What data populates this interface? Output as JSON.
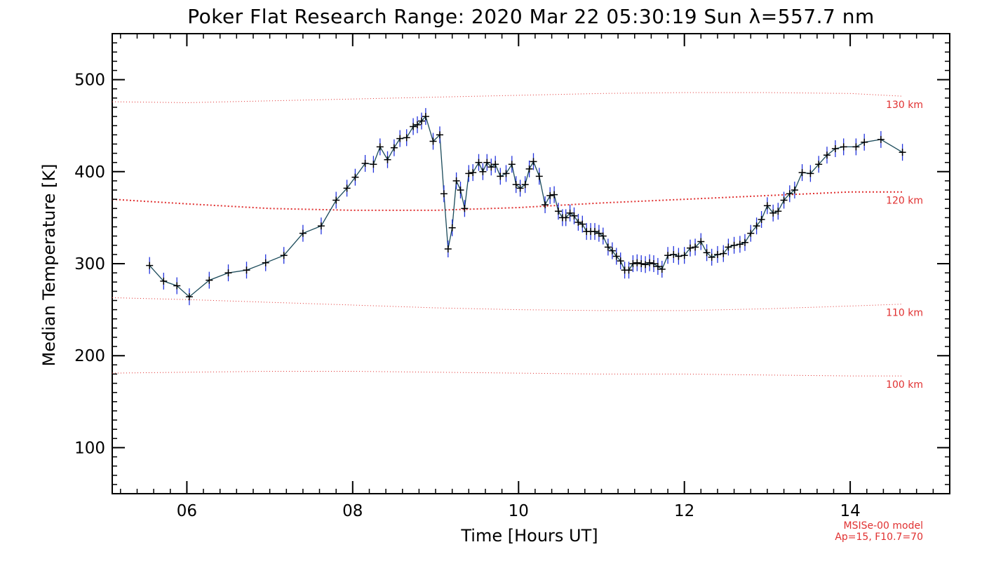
{
  "chart_data": {
    "type": "line",
    "title": "Poker Flat Research Range: 2020 Mar 22 05:30:19 Sun λ=557.7 nm",
    "xlabel": "Time [Hours UT]",
    "ylabel": "Median Temperature [K]",
    "xlim": [
      5.1,
      15.2
    ],
    "ylim": [
      50,
      550
    ],
    "x_ticks": [
      6,
      8,
      10,
      12,
      14
    ],
    "x_tick_labels": [
      "06",
      "08",
      "10",
      "12",
      "14"
    ],
    "y_ticks": [
      100,
      200,
      300,
      400,
      500
    ],
    "y_tick_labels": [
      "100",
      "200",
      "300",
      "400",
      "500"
    ],
    "grid": false,
    "line_color": "#1a4a5a",
    "marker_color": "#000000",
    "errorbar_color": "#2233dd",
    "reference_color": "#e03030",
    "series": [
      {
        "x": [
          5.55,
          5.72,
          5.88,
          6.03,
          6.27,
          6.5,
          6.72,
          6.95,
          7.17,
          7.4,
          7.62,
          7.8,
          7.93,
          8.03,
          8.15,
          8.25,
          8.33,
          8.42,
          8.5,
          8.57,
          8.65,
          8.73,
          8.78,
          8.83,
          8.88,
          8.97,
          9.05,
          9.1,
          9.15,
          9.2,
          9.25,
          9.3,
          9.35,
          9.4,
          9.45,
          9.52,
          9.57,
          9.62,
          9.67,
          9.72,
          9.78,
          9.85,
          9.92,
          9.97,
          10.02,
          10.08,
          10.13,
          10.18,
          10.25,
          10.32,
          10.38,
          10.43,
          10.48,
          10.53,
          10.57,
          10.62,
          10.67,
          10.72,
          10.77,
          10.82,
          10.87,
          10.92,
          10.97,
          11.02,
          11.08,
          11.13,
          11.18,
          11.23,
          11.28,
          11.33,
          11.38,
          11.43,
          11.48,
          11.53,
          11.58,
          11.63,
          11.68,
          11.73,
          11.8,
          11.87,
          11.93,
          12.0,
          12.07,
          12.13,
          12.2,
          12.27,
          12.33,
          12.4,
          12.47,
          12.53,
          12.6,
          12.67,
          12.73,
          12.8,
          12.87,
          12.93,
          13.0,
          13.07,
          13.13,
          13.2,
          13.27,
          13.33,
          13.42,
          13.52,
          13.62,
          13.72,
          13.82,
          13.92,
          14.07,
          14.17,
          14.37,
          14.63
        ],
        "y": [
          298,
          281,
          276,
          264,
          282,
          290,
          293,
          301,
          309,
          333,
          341,
          369,
          382,
          394,
          409,
          408,
          427,
          413,
          426,
          436,
          437,
          449,
          451,
          455,
          460,
          433,
          440,
          376,
          316,
          339,
          390,
          380,
          360,
          398,
          399,
          410,
          400,
          410,
          405,
          408,
          395,
          398,
          408,
          386,
          382,
          386,
          403,
          411,
          395,
          364,
          374,
          375,
          357,
          350,
          350,
          355,
          352,
          345,
          343,
          335,
          335,
          335,
          333,
          330,
          318,
          314,
          308,
          303,
          293,
          293,
          300,
          301,
          300,
          299,
          301,
          300,
          297,
          294,
          309,
          310,
          308,
          309,
          317,
          318,
          324,
          312,
          307,
          310,
          311,
          318,
          320,
          321,
          323,
          333,
          341,
          348,
          363,
          355,
          357,
          369,
          376,
          380,
          399,
          398,
          408,
          418,
          425,
          427,
          427,
          432,
          435,
          421
        ]
      }
    ],
    "reference_lines": [
      {
        "label": "130 km",
        "x": [
          5.1,
          6.0,
          7.0,
          8.0,
          9.0,
          10.0,
          11.0,
          12.0,
          13.0,
          14.0,
          14.63
        ],
        "y": [
          476,
          475,
          477,
          479,
          481,
          483,
          485,
          486,
          486,
          485,
          482
        ]
      },
      {
        "label": "120 km",
        "x": [
          5.1,
          6.0,
          7.0,
          8.0,
          9.0,
          10.0,
          11.0,
          12.0,
          13.0,
          14.0,
          14.63
        ],
        "y": [
          370,
          365,
          360,
          358,
          358,
          361,
          366,
          370,
          374,
          378,
          378
        ]
      },
      {
        "label": "110 km",
        "x": [
          5.1,
          6.0,
          7.0,
          8.0,
          9.0,
          10.0,
          11.0,
          12.0,
          13.0,
          14.0,
          14.63
        ],
        "y": [
          263,
          261,
          258,
          255,
          252,
          250,
          249,
          249,
          251,
          254,
          256
        ]
      },
      {
        "label": "100 km",
        "x": [
          5.1,
          6.0,
          7.0,
          8.0,
          9.0,
          10.0,
          11.0,
          12.0,
          13.0,
          14.0,
          14.63
        ],
        "y": [
          181,
          182,
          183,
          183,
          182,
          181,
          180,
          180,
          179,
          178,
          178
        ]
      }
    ],
    "annotations": [
      "MSISe-00 model",
      "Ap=15, F10.7=70"
    ]
  }
}
